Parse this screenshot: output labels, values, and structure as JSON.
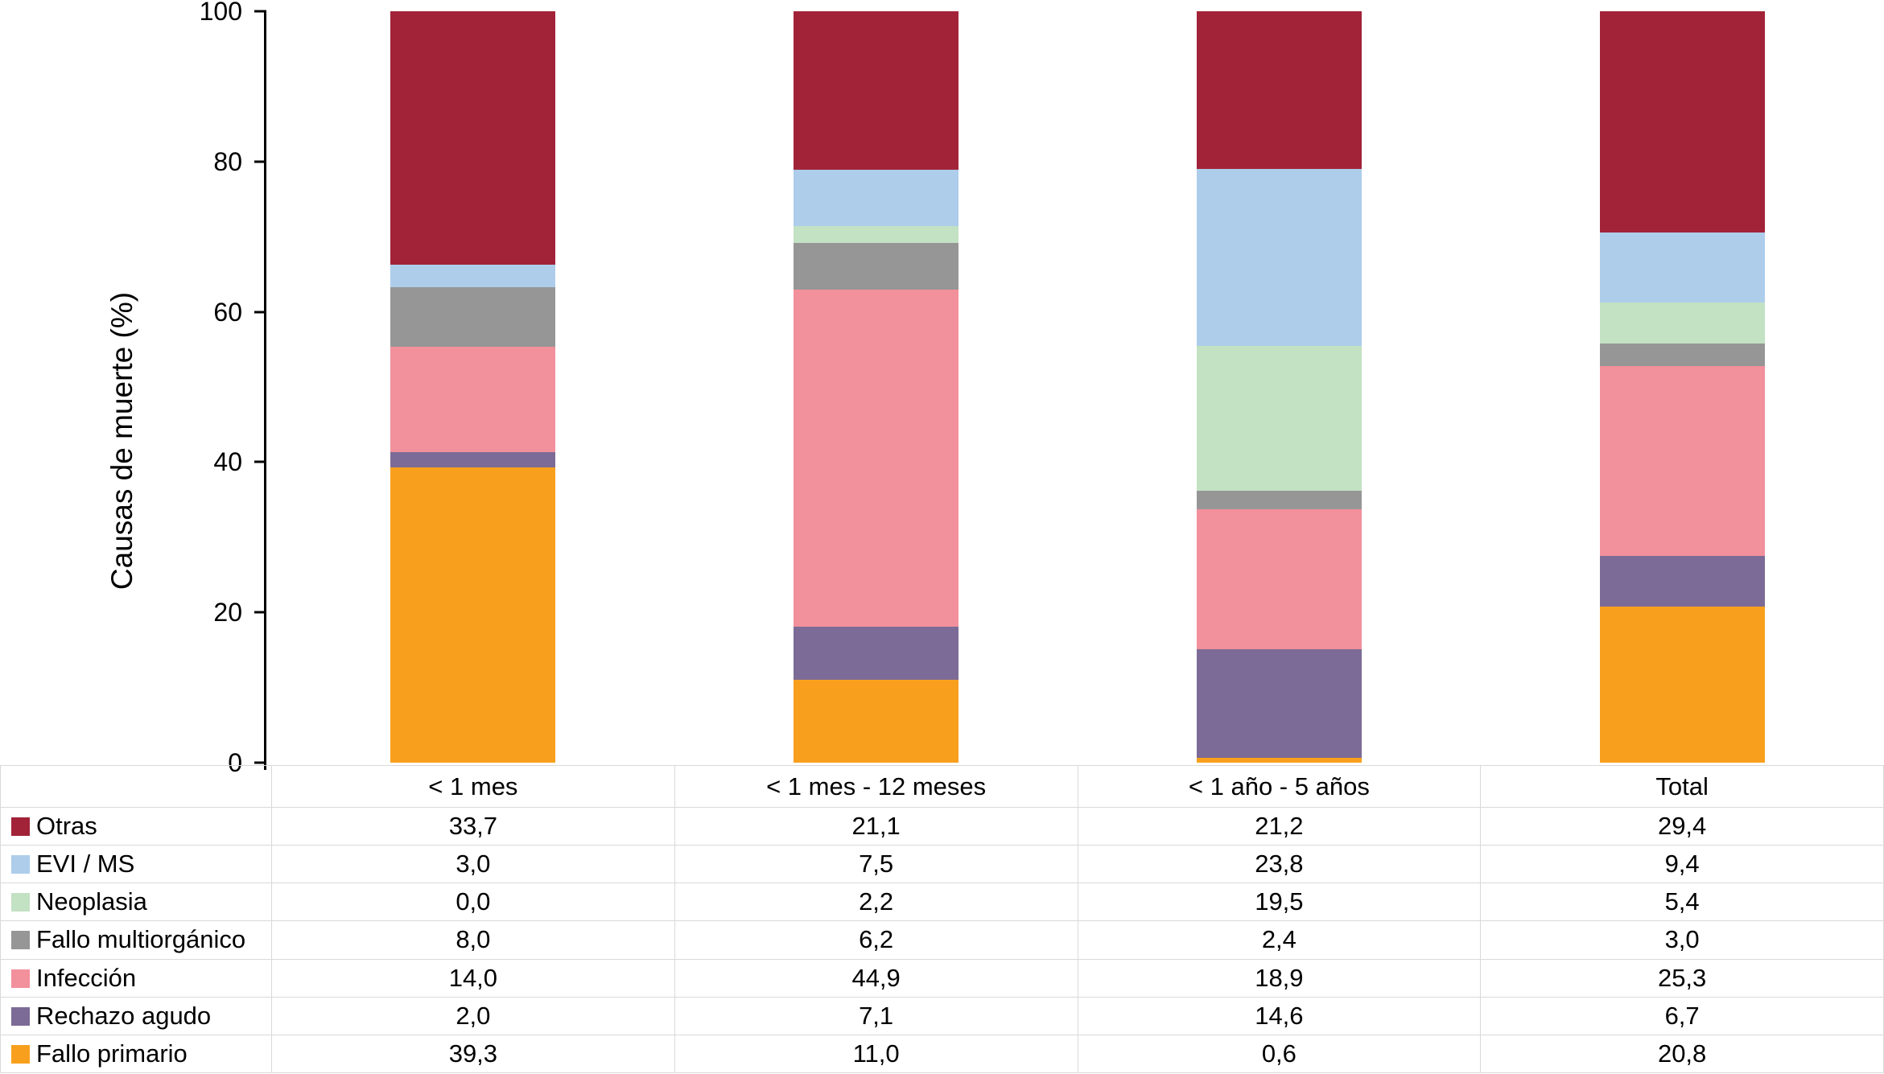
{
  "chart_data": {
    "type": "bar",
    "stacked": true,
    "title": "",
    "xlabel": "",
    "ylabel": "Causas de muerte (%)",
    "ylim": [
      0,
      100
    ],
    "yticks": [
      0,
      20,
      40,
      60,
      80,
      100
    ],
    "grid": false,
    "legend_position": "left column of data table below chart",
    "categories": [
      "< 1 mes",
      "< 1 mes - 12 meses",
      "< 1 año - 5 años",
      "Total"
    ],
    "series_order": "top-to-bottom (same order in bar stack and table rows)",
    "series": [
      {
        "name": "Otras",
        "color": "#A22338",
        "values": [
          33.7,
          21.1,
          21.2,
          29.4
        ],
        "values_display": [
          "33,7",
          "21,1",
          "21,2",
          "29,4"
        ]
      },
      {
        "name": "EVI / MS",
        "color": "#ADCDEB",
        "values": [
          3.0,
          7.5,
          23.8,
          9.4
        ],
        "values_display": [
          "3,0",
          "7,5",
          "23,8",
          "9,4"
        ]
      },
      {
        "name": "Neoplasia",
        "color": "#C3E1C3",
        "values": [
          0.0,
          2.2,
          19.5,
          5.4
        ],
        "values_display": [
          "0,0",
          "2,2",
          "19,5",
          "5,4"
        ]
      },
      {
        "name": "Fallo multiorgánico",
        "color": "#969696",
        "values": [
          8.0,
          6.2,
          2.4,
          3.0
        ],
        "values_display": [
          "8,0",
          "6,2",
          "2,4",
          "3,0"
        ]
      },
      {
        "name": "Infección",
        "color": "#F2909B",
        "values": [
          14.0,
          44.9,
          18.9,
          25.3
        ],
        "values_display": [
          "14,0",
          "44,9",
          "18,9",
          "25,3"
        ]
      },
      {
        "name": "Rechazo agudo",
        "color": "#7C6B96",
        "values": [
          2.0,
          7.1,
          14.6,
          6.7
        ],
        "values_display": [
          "2,0",
          "7,1",
          "14,6",
          "6,7"
        ]
      },
      {
        "name": "Fallo primario",
        "color": "#F8A01D",
        "values": [
          39.3,
          11.0,
          0.6,
          20.8
        ],
        "values_display": [
          "39,3",
          "11,0",
          "0,6",
          "20,8"
        ]
      }
    ]
  }
}
